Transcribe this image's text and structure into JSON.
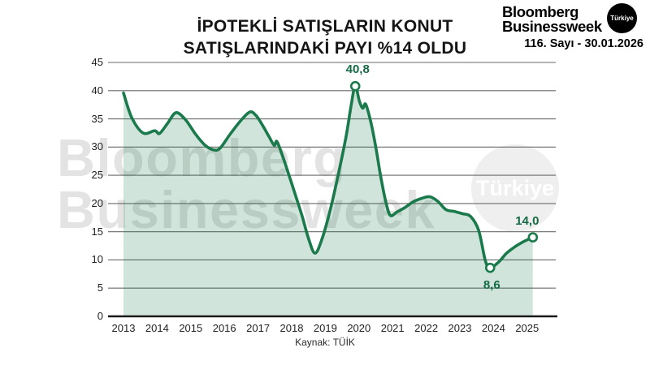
{
  "header": {
    "logo_line1": "Bloomberg",
    "logo_line2": "Businessweek",
    "logo_badge": "Türkiye",
    "issue": "116. Sayı - 30.01.2026"
  },
  "title_line1": "İPOTEKLİ SATIŞLARIN KONUT",
  "title_line2": "SATIŞLARINDAKİ PAYI %14 OLDU",
  "source": "Kaynak: TÜİK",
  "watermark": {
    "line1": "Bloomberg",
    "line2": "Businessweek",
    "badge": "Türkiye"
  },
  "colors": {
    "line": "#1a7a4c",
    "fill": "rgba(27,122,74,0.20)",
    "grid": "#6a6a6a",
    "axis": "#1a1a1a",
    "annotation": "#156b45"
  },
  "chart_data": {
    "type": "area",
    "title": "İPOTEKLİ SATIŞLARIN KONUT SATIŞLARINDAKİ PAYI %14 OLDU",
    "xlabel": "",
    "ylabel": "",
    "ylim": [
      0,
      45
    ],
    "yticks": [
      0,
      5,
      10,
      15,
      20,
      25,
      30,
      35,
      40,
      45
    ],
    "xticks": [
      2013,
      2014,
      2015,
      2016,
      2017,
      2018,
      2019,
      2020,
      2021,
      2022,
      2023,
      2024,
      2025
    ],
    "grid": true,
    "legend": "none",
    "x": [
      2013.0,
      2013.24,
      2013.58,
      2013.93,
      2014.07,
      2014.31,
      2014.56,
      2014.85,
      2015.14,
      2015.43,
      2015.68,
      2015.87,
      2016.16,
      2016.46,
      2016.75,
      2016.94,
      2017.14,
      2017.33,
      2017.48,
      2017.56,
      2017.72,
      2017.92,
      2018.11,
      2018.31,
      2018.5,
      2018.69,
      2018.89,
      2019.13,
      2019.38,
      2019.62,
      2019.77,
      2019.89,
      2020.01,
      2020.11,
      2020.2,
      2020.35,
      2020.5,
      2020.64,
      2020.79,
      2020.93,
      2021.13,
      2021.37,
      2021.61,
      2021.86,
      2022.1,
      2022.34,
      2022.59,
      2022.83,
      2023.07,
      2023.32,
      2023.56,
      2023.76,
      2023.9,
      2024.15,
      2024.39,
      2024.63,
      2024.88,
      2025.17
    ],
    "values": [
      39.6,
      35.3,
      32.5,
      32.9,
      32.4,
      34.2,
      36.1,
      34.8,
      32.3,
      30.3,
      29.5,
      29.8,
      32.2,
      34.5,
      36.2,
      35.6,
      33.8,
      31.8,
      30.3,
      31.0,
      28.6,
      25.0,
      21.5,
      17.8,
      13.8,
      11.2,
      13.5,
      18.5,
      25.0,
      32.0,
      37.5,
      40.8,
      38.2,
      36.9,
      37.6,
      34.5,
      30.0,
      25.0,
      20.5,
      17.9,
      18.5,
      19.3,
      20.3,
      20.9,
      21.2,
      20.4,
      18.9,
      18.6,
      18.2,
      17.7,
      15.2,
      9.8,
      8.6,
      9.6,
      11.2,
      12.3,
      13.2,
      14.0
    ],
    "annotations": [
      {
        "x": 2019.89,
        "y": 40.8,
        "label": "40,8",
        "pos": "above",
        "dx": 3
      },
      {
        "x": 2023.9,
        "y": 8.6,
        "label": "8,6",
        "pos": "below",
        "dx": 2
      },
      {
        "x": 2025.17,
        "y": 14.0,
        "label": "14,0",
        "pos": "above",
        "dx": -7
      }
    ]
  }
}
